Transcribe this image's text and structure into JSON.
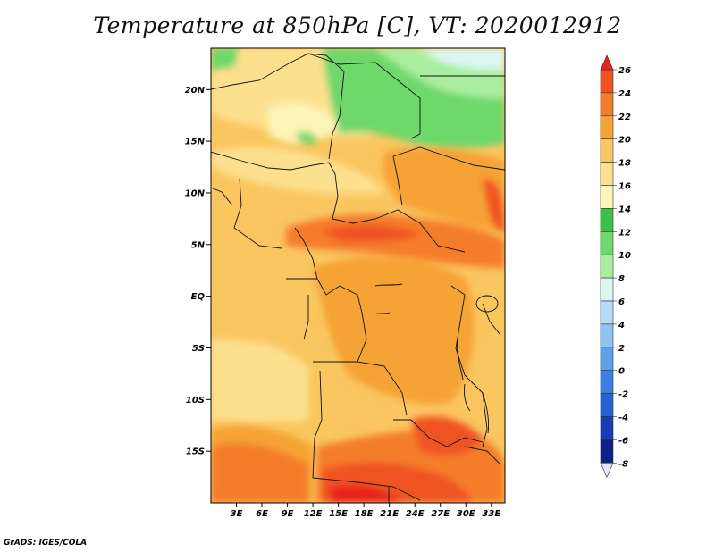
{
  "title": "Temperature at 850hPa [C], VT: 2020012912",
  "footer": "GrADS: IGES/COLA",
  "map": {
    "lon_range": [
      0,
      34.6
    ],
    "lat_range": [
      -20,
      24
    ],
    "lat_ticks": [
      {
        "value": 20,
        "label": "20N"
      },
      {
        "value": 15,
        "label": "15N"
      },
      {
        "value": 10,
        "label": "10N"
      },
      {
        "value": 5,
        "label": "5N"
      },
      {
        "value": 0,
        "label": "EQ"
      },
      {
        "value": -5,
        "label": "5S"
      },
      {
        "value": -10,
        "label": "10S"
      },
      {
        "value": -15,
        "label": "15S"
      }
    ],
    "lon_ticks": [
      {
        "value": 3,
        "label": "3E"
      },
      {
        "value": 6,
        "label": "6E"
      },
      {
        "value": 9,
        "label": "9E"
      },
      {
        "value": 12,
        "label": "12E"
      },
      {
        "value": 15,
        "label": "15E"
      },
      {
        "value": 18,
        "label": "18E"
      },
      {
        "value": 21,
        "label": "21E"
      },
      {
        "value": 24,
        "label": "24E"
      },
      {
        "value": 27,
        "label": "27E"
      },
      {
        "value": 30,
        "label": "30E"
      },
      {
        "value": 33,
        "label": "33E"
      }
    ]
  },
  "colorbar": {
    "levels": [
      "26",
      "24",
      "22",
      "20",
      "18",
      "16",
      "14",
      "12",
      "10",
      "8",
      "6",
      "4",
      "2",
      "0",
      "-2",
      "-4",
      "-6",
      "-8"
    ],
    "colors": [
      "#e8231f",
      "#f05224",
      "#f47d2b",
      "#f6a336",
      "#fac660",
      "#fde08e",
      "#fdf4b7",
      "#3cc24a",
      "#6ed86a",
      "#a9ee9f",
      "#dbf7f3",
      "#b5dcf7",
      "#8fc3f3",
      "#5fa0ec",
      "#3b7ee4",
      "#2562d6",
      "#143db7",
      "#0b2388",
      "#e6e6fa"
    ],
    "color_order": "top-to-bottom, arrow tip to arrow tip"
  }
}
